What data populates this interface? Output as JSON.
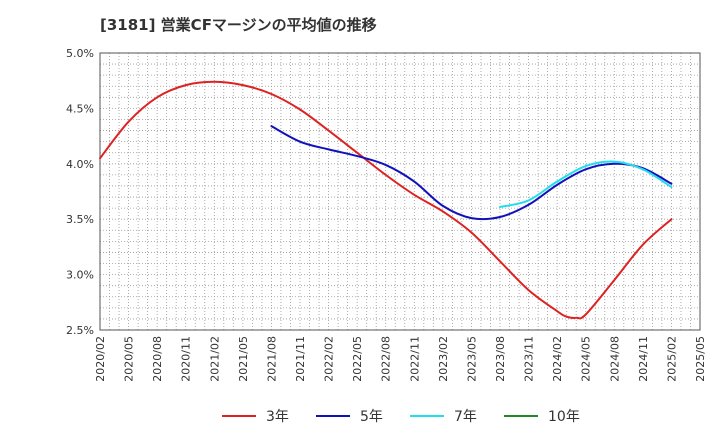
{
  "chart_data": {
    "type": "line",
    "title": "[3181]  営業CFマージンの平均値の推移",
    "xlabel": "",
    "ylabel": "",
    "x_ticks": [
      "2020/02",
      "2020/05",
      "2020/08",
      "2020/11",
      "2021/02",
      "2021/05",
      "2021/08",
      "2021/11",
      "2022/02",
      "2022/05",
      "2022/08",
      "2022/11",
      "2023/02",
      "2023/05",
      "2023/08",
      "2023/11",
      "2024/02",
      "2024/05",
      "2024/08",
      "2024/11",
      "2025/02",
      "2025/05"
    ],
    "y_ticks": [
      "5.0%",
      "4.5%",
      "4.0%",
      "3.5%",
      "3.0%",
      "2.5%"
    ],
    "ylim": [
      2.5,
      5.0
    ],
    "grid": true,
    "legend_position": "bottom",
    "series": [
      {
        "name": "3年",
        "color": "#dd2222",
        "x": [
          "2020/02",
          "2020/05",
          "2020/08",
          "2020/11",
          "2021/02",
          "2021/05",
          "2021/08",
          "2021/11",
          "2022/02",
          "2022/05",
          "2022/08",
          "2022/11",
          "2023/02",
          "2023/05",
          "2023/08",
          "2023/11",
          "2024/02",
          "2024/03",
          "2024/04",
          "2024/05",
          "2024/08",
          "2024/11",
          "2025/02"
        ],
        "values": [
          4.05,
          4.38,
          4.6,
          4.71,
          4.74,
          4.71,
          4.63,
          4.49,
          4.3,
          4.1,
          3.9,
          3.72,
          3.57,
          3.38,
          3.12,
          2.86,
          2.67,
          2.62,
          2.61,
          2.64,
          2.95,
          3.27,
          3.5
        ]
      },
      {
        "name": "5年",
        "color": "#1111bb",
        "x": [
          "2021/08",
          "2021/11",
          "2022/02",
          "2022/05",
          "2022/08",
          "2022/11",
          "2023/02",
          "2023/05",
          "2023/08",
          "2023/11",
          "2024/02",
          "2024/05",
          "2024/08",
          "2024/11",
          "2025/02"
        ],
        "values": [
          4.34,
          4.2,
          4.13,
          4.07,
          3.99,
          3.84,
          3.62,
          3.51,
          3.52,
          3.63,
          3.81,
          3.95,
          4.0,
          3.96,
          3.82
        ]
      },
      {
        "name": "7年",
        "color": "#22ddee",
        "x": [
          "2023/08",
          "2023/11",
          "2024/02",
          "2024/05",
          "2024/08",
          "2024/11",
          "2025/02"
        ],
        "values": [
          3.61,
          3.67,
          3.84,
          3.98,
          4.02,
          3.95,
          3.79
        ]
      },
      {
        "name": "10年",
        "color": "#228822",
        "x": [],
        "values": []
      }
    ]
  }
}
